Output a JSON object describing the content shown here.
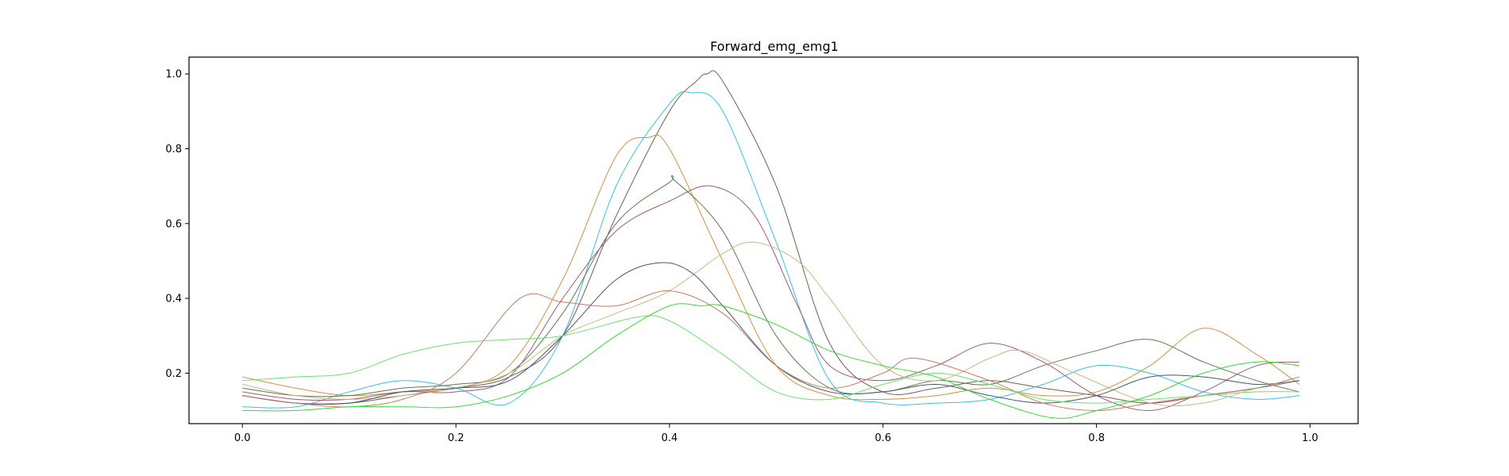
{
  "chart_data": {
    "type": "line",
    "title": "Forward_emg_emg1",
    "xlabel": "",
    "ylabel": "",
    "xlim": [
      -0.05,
      1.045
    ],
    "ylim": [
      0.065,
      1.045
    ],
    "xticks": [
      0.0,
      0.2,
      0.4,
      0.6,
      0.8,
      1.0
    ],
    "xtick_labels": [
      "0.0",
      "0.2",
      "0.4",
      "0.6",
      "0.8",
      "1.0"
    ],
    "yticks": [
      0.2,
      0.4,
      0.6,
      0.8,
      1.0
    ],
    "ytick_labels": [
      "0.2",
      "0.4",
      "0.6",
      "0.8",
      "1.0"
    ],
    "grid": false,
    "legend": "none",
    "series": [
      {
        "color": "#7a5a5a",
        "x": [
          0.0,
          0.05,
          0.1,
          0.15,
          0.2,
          0.25,
          0.3,
          0.35,
          0.4,
          0.425,
          0.435,
          0.45,
          0.5,
          0.55,
          0.6,
          0.65,
          0.7,
          0.75,
          0.8,
          0.85,
          0.9,
          0.95,
          0.99
        ],
        "y": [
          0.14,
          0.12,
          0.12,
          0.14,
          0.16,
          0.19,
          0.3,
          0.62,
          0.9,
          0.98,
          1.0,
          0.98,
          0.7,
          0.28,
          0.15,
          0.16,
          0.18,
          0.16,
          0.14,
          0.12,
          0.14,
          0.16,
          0.18
        ]
      },
      {
        "color": "#33c4e6",
        "x": [
          0.0,
          0.05,
          0.1,
          0.15,
          0.2,
          0.25,
          0.3,
          0.35,
          0.4,
          0.42,
          0.45,
          0.5,
          0.55,
          0.6,
          0.65,
          0.7,
          0.75,
          0.8,
          0.85,
          0.9,
          0.95,
          0.99
        ],
        "y": [
          0.11,
          0.11,
          0.15,
          0.18,
          0.16,
          0.12,
          0.3,
          0.7,
          0.92,
          0.95,
          0.9,
          0.55,
          0.18,
          0.12,
          0.12,
          0.13,
          0.17,
          0.22,
          0.2,
          0.15,
          0.13,
          0.14
        ]
      },
      {
        "color": "#d2913f",
        "x": [
          0.0,
          0.05,
          0.1,
          0.15,
          0.2,
          0.25,
          0.3,
          0.35,
          0.38,
          0.4,
          0.45,
          0.5,
          0.55,
          0.6,
          0.65,
          0.7,
          0.75,
          0.8,
          0.85,
          0.9,
          0.95,
          0.99
        ],
        "y": [
          0.19,
          0.16,
          0.14,
          0.15,
          0.16,
          0.22,
          0.45,
          0.78,
          0.83,
          0.8,
          0.5,
          0.22,
          0.14,
          0.13,
          0.14,
          0.16,
          0.14,
          0.15,
          0.22,
          0.32,
          0.25,
          0.17
        ]
      },
      {
        "color": "#5e7a4e",
        "x": [
          0.0,
          0.05,
          0.1,
          0.15,
          0.2,
          0.25,
          0.3,
          0.35,
          0.4,
          0.405,
          0.45,
          0.5,
          0.55,
          0.6,
          0.65,
          0.7,
          0.75,
          0.8,
          0.85,
          0.9,
          0.95,
          0.99
        ],
        "y": [
          0.16,
          0.14,
          0.14,
          0.16,
          0.17,
          0.2,
          0.36,
          0.6,
          0.71,
          0.715,
          0.58,
          0.3,
          0.16,
          0.15,
          0.18,
          0.17,
          0.22,
          0.26,
          0.29,
          0.23,
          0.18,
          0.15
        ]
      },
      {
        "color": "#a05a7a",
        "x": [
          0.0,
          0.05,
          0.1,
          0.15,
          0.2,
          0.25,
          0.3,
          0.35,
          0.4,
          0.44,
          0.48,
          0.52,
          0.55,
          0.6,
          0.65,
          0.7,
          0.75,
          0.8,
          0.85,
          0.9,
          0.95,
          0.99
        ],
        "y": [
          0.15,
          0.13,
          0.13,
          0.15,
          0.15,
          0.19,
          0.4,
          0.58,
          0.66,
          0.7,
          0.62,
          0.38,
          0.22,
          0.18,
          0.22,
          0.28,
          0.23,
          0.14,
          0.1,
          0.15,
          0.22,
          0.23
        ]
      },
      {
        "color": "#c8b882",
        "x": [
          0.0,
          0.05,
          0.1,
          0.15,
          0.2,
          0.25,
          0.3,
          0.35,
          0.4,
          0.45,
          0.48,
          0.52,
          0.55,
          0.6,
          0.65,
          0.7,
          0.73,
          0.78,
          0.85,
          0.9,
          0.95,
          0.99
        ],
        "y": [
          0.17,
          0.14,
          0.13,
          0.14,
          0.16,
          0.2,
          0.3,
          0.36,
          0.42,
          0.52,
          0.55,
          0.5,
          0.4,
          0.22,
          0.18,
          0.24,
          0.26,
          0.2,
          0.12,
          0.12,
          0.16,
          0.18
        ]
      },
      {
        "color": "#3f5a6a",
        "x": [
          0.0,
          0.05,
          0.1,
          0.15,
          0.2,
          0.25,
          0.3,
          0.35,
          0.39,
          0.42,
          0.45,
          0.5,
          0.55,
          0.6,
          0.65,
          0.7,
          0.75,
          0.8,
          0.85,
          0.9,
          0.95,
          0.99
        ],
        "y": [
          0.14,
          0.12,
          0.12,
          0.15,
          0.16,
          0.18,
          0.3,
          0.45,
          0.495,
          0.47,
          0.38,
          0.22,
          0.15,
          0.15,
          0.17,
          0.14,
          0.12,
          0.14,
          0.19,
          0.19,
          0.17,
          0.18
        ]
      },
      {
        "color": "#c87a60",
        "x": [
          0.0,
          0.05,
          0.1,
          0.15,
          0.2,
          0.26,
          0.3,
          0.35,
          0.4,
          0.45,
          0.5,
          0.55,
          0.6,
          0.63,
          0.7,
          0.75,
          0.8,
          0.85,
          0.9,
          0.95,
          0.99
        ],
        "y": [
          0.14,
          0.12,
          0.11,
          0.13,
          0.2,
          0.4,
          0.39,
          0.38,
          0.42,
          0.36,
          0.22,
          0.16,
          0.2,
          0.24,
          0.18,
          0.12,
          0.1,
          0.12,
          0.14,
          0.16,
          0.19
        ]
      },
      {
        "color": "#6ee06e",
        "x": [
          0.0,
          0.05,
          0.1,
          0.15,
          0.2,
          0.25,
          0.3,
          0.37,
          0.4,
          0.45,
          0.5,
          0.55,
          0.6,
          0.65,
          0.7,
          0.75,
          0.8,
          0.85,
          0.9,
          0.95,
          0.99
        ],
        "y": [
          0.18,
          0.19,
          0.2,
          0.25,
          0.28,
          0.29,
          0.3,
          0.35,
          0.34,
          0.25,
          0.15,
          0.13,
          0.17,
          0.2,
          0.17,
          0.13,
          0.12,
          0.13,
          0.14,
          0.15,
          0.15
        ]
      },
      {
        "color": "#33dd33",
        "x": [
          0.0,
          0.05,
          0.1,
          0.15,
          0.2,
          0.25,
          0.3,
          0.35,
          0.4,
          0.43,
          0.45,
          0.5,
          0.55,
          0.6,
          0.65,
          0.7,
          0.76,
          0.8,
          0.85,
          0.9,
          0.95,
          0.99
        ],
        "y": [
          0.1,
          0.1,
          0.11,
          0.11,
          0.11,
          0.14,
          0.2,
          0.3,
          0.38,
          0.38,
          0.38,
          0.33,
          0.26,
          0.22,
          0.19,
          0.13,
          0.08,
          0.1,
          0.14,
          0.2,
          0.23,
          0.22
        ]
      }
    ]
  }
}
